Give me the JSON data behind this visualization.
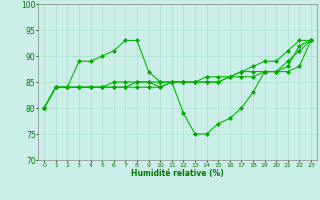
{
  "xlabel": "Humidité relative (%)",
  "background_color": "#cceee8",
  "grid_color": "#aaddcc",
  "line_color": "#00bb00",
  "marker_color": "#00aa00",
  "ylim": [
    70,
    100
  ],
  "xlim": [
    0,
    23
  ],
  "yticks": [
    70,
    75,
    80,
    85,
    90,
    95,
    100
  ],
  "xticks": [
    0,
    1,
    2,
    3,
    4,
    5,
    6,
    7,
    8,
    9,
    10,
    11,
    12,
    13,
    14,
    15,
    16,
    17,
    18,
    19,
    20,
    21,
    22,
    23
  ],
  "series": [
    [
      80,
      84,
      84,
      84,
      84,
      84,
      84,
      84,
      84,
      84,
      84,
      85,
      79,
      75,
      75,
      77,
      78,
      80,
      83,
      87,
      87,
      89,
      91,
      93
    ],
    [
      80,
      84,
      84,
      84,
      84,
      84,
      85,
      85,
      85,
      85,
      85,
      85,
      85,
      85,
      85,
      85,
      86,
      86,
      86,
      87,
      87,
      87,
      88,
      93
    ],
    [
      80,
      84,
      84,
      89,
      89,
      90,
      91,
      93,
      93,
      87,
      85,
      85,
      85,
      85,
      85,
      85,
      86,
      87,
      88,
      89,
      89,
      91,
      93,
      93
    ],
    [
      80,
      84,
      84,
      84,
      84,
      84,
      84,
      84,
      85,
      85,
      84,
      85,
      85,
      85,
      86,
      86,
      86,
      87,
      87,
      87,
      87,
      88,
      92,
      93
    ]
  ]
}
